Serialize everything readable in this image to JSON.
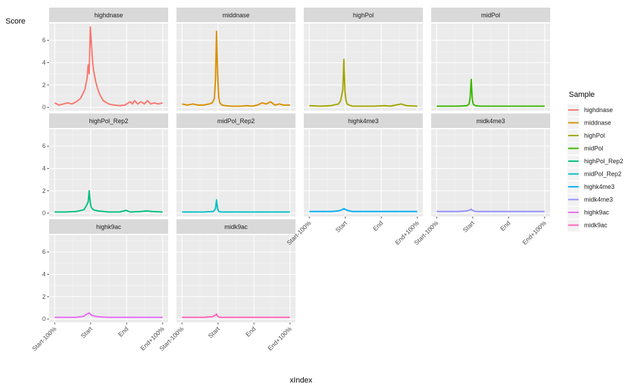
{
  "chart_data": {
    "type": "line",
    "ylabel": "Score",
    "xlabel": "xIndex",
    "x_ticks": [
      "Start-100%",
      "Start",
      "End",
      "End+100%"
    ],
    "y_ticks": [
      0,
      2,
      4,
      6
    ],
    "ylim": [
      -0.3,
      7.5
    ],
    "grid": true,
    "legend": {
      "title": "Sample",
      "placement": "right",
      "entries": [
        "highdnase",
        "middnase",
        "highPol",
        "midPol",
        "highPol_Rep2",
        "midPol_Rep2",
        "highk4me3",
        "midk4me3",
        "highk9ac",
        "midk9ac"
      ]
    },
    "series": [
      {
        "name": "highdnase",
        "color": "#F8766D",
        "x": [
          0,
          0.04,
          0.08,
          0.12,
          0.16,
          0.2,
          0.24,
          0.28,
          0.3,
          0.31,
          0.32,
          0.33,
          0.34,
          0.35,
          0.36,
          0.38,
          0.4,
          0.42,
          0.45,
          0.5,
          0.55,
          0.6,
          0.65,
          0.7,
          0.72,
          0.74,
          0.77,
          0.8,
          0.83,
          0.86,
          0.89,
          0.92,
          0.96,
          1.0
        ],
        "y": [
          0.4,
          0.2,
          0.3,
          0.4,
          0.3,
          0.5,
          0.8,
          1.6,
          2.6,
          3.8,
          3.0,
          7.2,
          5.8,
          4.2,
          3.3,
          2.3,
          1.6,
          1.1,
          0.6,
          0.3,
          0.2,
          0.15,
          0.2,
          0.5,
          0.3,
          0.6,
          0.3,
          0.5,
          0.3,
          0.6,
          0.3,
          0.4,
          0.3,
          0.4
        ]
      },
      {
        "name": "middnase",
        "color": "#D89000",
        "x": [
          0,
          0.05,
          0.1,
          0.15,
          0.2,
          0.25,
          0.28,
          0.3,
          0.31,
          0.32,
          0.33,
          0.34,
          0.35,
          0.37,
          0.4,
          0.45,
          0.5,
          0.55,
          0.6,
          0.65,
          0.7,
          0.74,
          0.78,
          0.82,
          0.86,
          0.9,
          0.94,
          1.0
        ],
        "y": [
          0.3,
          0.2,
          0.3,
          0.2,
          0.2,
          0.3,
          0.4,
          0.8,
          2.5,
          6.8,
          3.0,
          0.9,
          0.4,
          0.2,
          0.15,
          0.1,
          0.1,
          0.1,
          0.15,
          0.1,
          0.2,
          0.4,
          0.3,
          0.5,
          0.2,
          0.3,
          0.2,
          0.2
        ]
      },
      {
        "name": "highPol",
        "color": "#A3A500",
        "x": [
          0,
          0.1,
          0.2,
          0.27,
          0.29,
          0.31,
          0.32,
          0.33,
          0.34,
          0.35,
          0.37,
          0.4,
          0.5,
          0.6,
          0.7,
          0.75,
          0.8,
          0.85,
          0.9,
          1.0
        ],
        "y": [
          0.15,
          0.1,
          0.15,
          0.3,
          0.6,
          1.6,
          4.3,
          1.4,
          0.6,
          0.3,
          0.2,
          0.1,
          0.1,
          0.1,
          0.15,
          0.1,
          0.2,
          0.3,
          0.15,
          0.1
        ]
      },
      {
        "name": "midPol",
        "color": "#39B600",
        "x": [
          0,
          0.1,
          0.2,
          0.28,
          0.3,
          0.31,
          0.32,
          0.33,
          0.34,
          0.36,
          0.4,
          0.5,
          0.6,
          0.7,
          0.8,
          0.9,
          1.0
        ],
        "y": [
          0.1,
          0.1,
          0.1,
          0.15,
          0.3,
          0.9,
          2.5,
          0.7,
          0.25,
          0.15,
          0.1,
          0.1,
          0.1,
          0.1,
          0.1,
          0.1,
          0.1
        ]
      },
      {
        "name": "highPol_Rep2",
        "color": "#00BF7D",
        "x": [
          0,
          0.1,
          0.2,
          0.27,
          0.29,
          0.31,
          0.32,
          0.33,
          0.34,
          0.36,
          0.4,
          0.5,
          0.6,
          0.66,
          0.7,
          0.8,
          0.85,
          0.9,
          1.0
        ],
        "y": [
          0.1,
          0.1,
          0.15,
          0.3,
          0.6,
          1.0,
          2.0,
          0.9,
          0.5,
          0.3,
          0.2,
          0.1,
          0.1,
          0.25,
          0.1,
          0.15,
          0.2,
          0.15,
          0.1
        ]
      },
      {
        "name": "midPol_Rep2",
        "color": "#00BFC4",
        "x": [
          0,
          0.1,
          0.2,
          0.29,
          0.31,
          0.32,
          0.33,
          0.34,
          0.36,
          0.4,
          0.5,
          0.6,
          0.7,
          0.8,
          0.9,
          1.0
        ],
        "y": [
          0.1,
          0.1,
          0.1,
          0.15,
          0.4,
          1.2,
          0.4,
          0.15,
          0.1,
          0.1,
          0.1,
          0.1,
          0.1,
          0.1,
          0.1,
          0.1
        ]
      },
      {
        "name": "highk4me3",
        "color": "#00B0F6",
        "x": [
          0,
          0.1,
          0.2,
          0.27,
          0.3,
          0.32,
          0.34,
          0.37,
          0.4,
          0.5,
          0.6,
          0.7,
          0.8,
          0.9,
          1.0
        ],
        "y": [
          0.15,
          0.15,
          0.15,
          0.2,
          0.3,
          0.4,
          0.3,
          0.2,
          0.15,
          0.15,
          0.15,
          0.15,
          0.15,
          0.15,
          0.15
        ]
      },
      {
        "name": "midk4me3",
        "color": "#9590FF",
        "x": [
          0,
          0.1,
          0.2,
          0.28,
          0.31,
          0.32,
          0.33,
          0.36,
          0.4,
          0.5,
          0.6,
          0.7,
          0.8,
          0.9,
          1.0
        ],
        "y": [
          0.15,
          0.15,
          0.15,
          0.2,
          0.3,
          0.35,
          0.25,
          0.15,
          0.15,
          0.15,
          0.15,
          0.15,
          0.15,
          0.15,
          0.15
        ]
      },
      {
        "name": "highk9ac",
        "color": "#E76BF3",
        "x": [
          0,
          0.1,
          0.2,
          0.27,
          0.3,
          0.32,
          0.34,
          0.37,
          0.4,
          0.5,
          0.6,
          0.7,
          0.8,
          0.9,
          1.0
        ],
        "y": [
          0.15,
          0.15,
          0.15,
          0.25,
          0.45,
          0.55,
          0.35,
          0.25,
          0.2,
          0.15,
          0.15,
          0.15,
          0.15,
          0.15,
          0.15
        ]
      },
      {
        "name": "midk9ac",
        "color": "#FF62BC",
        "x": [
          0,
          0.1,
          0.2,
          0.28,
          0.31,
          0.32,
          0.33,
          0.35,
          0.4,
          0.5,
          0.6,
          0.7,
          0.8,
          0.9,
          1.0
        ],
        "y": [
          0.15,
          0.15,
          0.15,
          0.2,
          0.35,
          0.45,
          0.25,
          0.15,
          0.15,
          0.15,
          0.15,
          0.15,
          0.15,
          0.15,
          0.15
        ]
      }
    ]
  }
}
